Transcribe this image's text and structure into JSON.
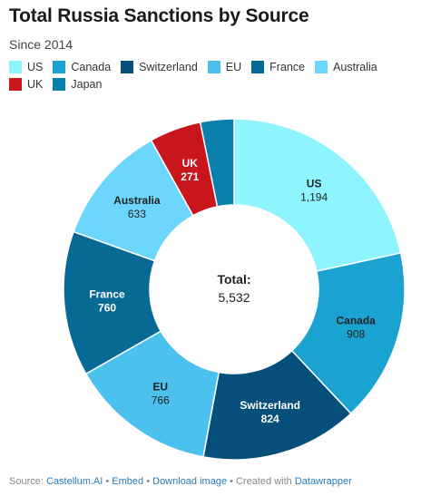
{
  "title": "Total Russia Sanctions by Source",
  "subtitle": "Since 2014",
  "chart_data": {
    "type": "pie",
    "donut": true,
    "categories": [
      "US",
      "Canada",
      "Switzerland",
      "EU",
      "France",
      "Australia",
      "UK",
      "Japan"
    ],
    "values": [
      1194,
      908,
      824,
      766,
      760,
      633,
      271,
      176
    ],
    "value_labels": [
      "1,194",
      "908",
      "824",
      "766",
      "760",
      "633",
      "271",
      ""
    ],
    "colors": [
      "#8ef4ff",
      "#1aa3d1",
      "#064f7a",
      "#4cc0ee",
      "#066a94",
      "#6dd6ff",
      "#c8161d",
      "#0b7fab"
    ],
    "label_colors": [
      "#222222",
      "#222222",
      "#ffffff",
      "#222222",
      "#ffffff",
      "#222222",
      "#ffffff",
      "#ffffff"
    ],
    "center_label": "Total:",
    "center_value": "5,532",
    "legend_placement": "top"
  },
  "footer": {
    "source_prefix": "Source: ",
    "source_name": "Castellum.AI",
    "sep1": " • ",
    "embed": "Embed",
    "sep2": " • ",
    "download": "Download image",
    "sep3": " • Created with ",
    "tool": "Datawrapper"
  }
}
